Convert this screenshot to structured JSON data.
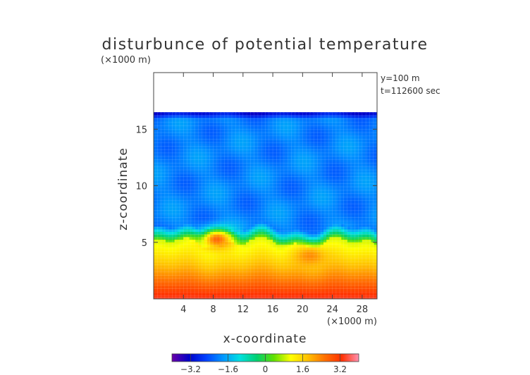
{
  "chart_data": {
    "type": "heatmap",
    "title": "disturbunce of potential temperature",
    "xlabel": "x-coordinate",
    "ylabel": "z-coordinate",
    "x_unit": "(×1000 m)",
    "y_unit": "(×1000 m)",
    "info": [
      "y=100 m",
      "t=112600 sec"
    ],
    "xlim": [
      0,
      30
    ],
    "ylim": [
      0,
      20
    ],
    "x_ticks": [
      4,
      8,
      12,
      16,
      20,
      24,
      28
    ],
    "y_ticks": [
      5,
      10,
      15
    ],
    "colorbar": {
      "range": [
        -4,
        4
      ],
      "ticks": [
        -3.2,
        -1.6,
        0,
        1.6,
        3.2
      ],
      "tick_labels": [
        "−3.2",
        "−1.6",
        "0",
        "1.6",
        "3.2"
      ]
    },
    "field_features": {
      "domain_top_z": 16.5,
      "upper_layer_value": -2.0,
      "inversion_z_range": [
        5.0,
        6.5
      ],
      "surface_value": 3.5,
      "warm_pockets": [
        {
          "x": 8.5,
          "z": 5.3,
          "value": 2.7
        },
        {
          "x": 21.0,
          "z": 3.8,
          "value": 2.3
        }
      ]
    }
  },
  "colors": {
    "colormap": [
      "#6a00a8",
      "#0000c8",
      "#0040ff",
      "#0096ff",
      "#00e0e0",
      "#00d070",
      "#60e000",
      "#ffff00",
      "#ffc000",
      "#ff7000",
      "#ff3000",
      "#ff90b0"
    ]
  }
}
